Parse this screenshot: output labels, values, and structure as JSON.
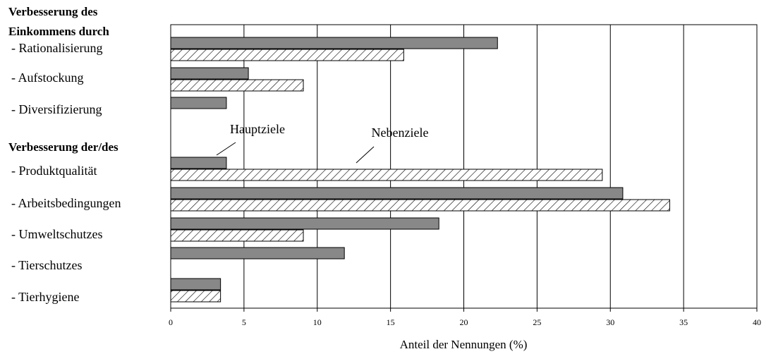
{
  "chart_data": {
    "type": "barh",
    "group_labels": [
      [
        "Verbesserung des",
        "Einkommens durch"
      ],
      [
        "Verbesserung der/des"
      ]
    ],
    "categories": [
      "- Rationalisierung",
      "- Aufstockung",
      "- Diversifizierung",
      "- Produktqualität",
      "- Arbeitsbedingungen",
      "- Umweltschutzes",
      "- Tierschutzes",
      "- Tierhygiene"
    ],
    "series": [
      {
        "name": "Hauptziele",
        "color": "#888888",
        "values": [
          22.3,
          5.3,
          3.8,
          3.8,
          30.85,
          18.3,
          11.85,
          3.4
        ]
      },
      {
        "name": "Nebenziele",
        "color": "hatch",
        "values": [
          15.9,
          9.05,
          null,
          29.45,
          34.05,
          9.05,
          null,
          3.4
        ]
      }
    ],
    "xlabel": "Anteil der Nennungen (%)",
    "xlim": [
      0,
      40
    ],
    "xticks": [
      0,
      5,
      10,
      15,
      20,
      25,
      30,
      35,
      40
    ],
    "grid": true
  }
}
